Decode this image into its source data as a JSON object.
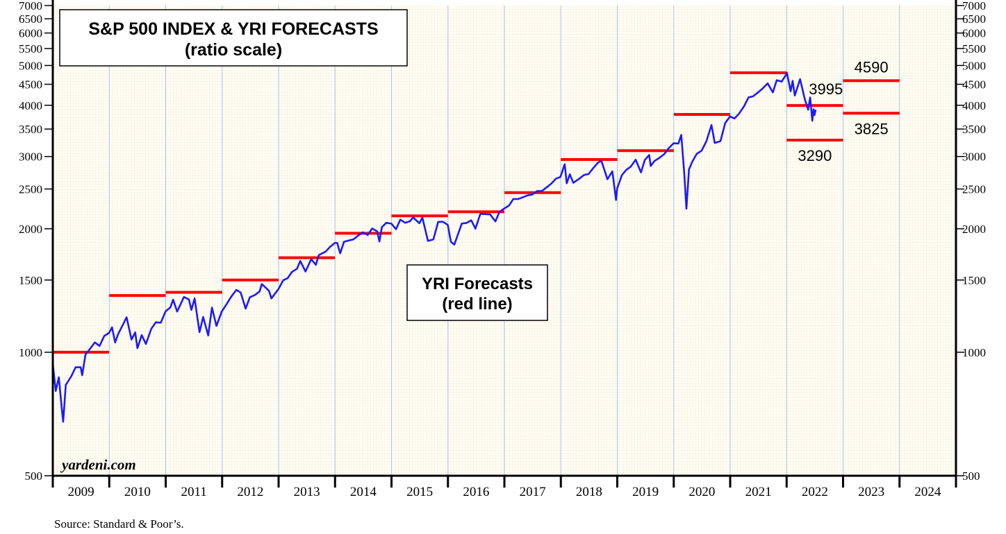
{
  "chart_data": {
    "type": "line",
    "title": "S&P 500 INDEX & YRI FORECASTS",
    "subtitle": "(ratio scale)",
    "annotation": "YRI Forecasts",
    "annotation_sub": "(red line)",
    "watermark": "yardeni.com",
    "source": "Source: Standard & Poor’s.",
    "y_scale": "log",
    "ylim": [
      500,
      7000
    ],
    "y_ticks": [
      500,
      1000,
      1500,
      2000,
      2500,
      3000,
      3500,
      4000,
      4500,
      5000,
      5500,
      6000,
      6500,
      7000
    ],
    "y_axis_both_sides": true,
    "x_categories": [
      "2009",
      "2010",
      "2011",
      "2012",
      "2013",
      "2014",
      "2015",
      "2016",
      "2017",
      "2018",
      "2019",
      "2020",
      "2021",
      "2022",
      "2023",
      "2024"
    ],
    "grid": "vertical lines at year boundaries",
    "colors": {
      "index": "#1a1aff",
      "forecast": "#ff0000",
      "grid": "#9ec5f0",
      "background": "#fffbee"
    },
    "series": [
      {
        "name": "S&P 500 Index",
        "type": "line",
        "points": [
          [
            "2009-01-02",
            931
          ],
          [
            "2009-01-20",
            805
          ],
          [
            "2009-02-09",
            869
          ],
          [
            "2009-02-27",
            735
          ],
          [
            "2009-03-09",
            677
          ],
          [
            "2009-03-26",
            833
          ],
          [
            "2009-04-30",
            873
          ],
          [
            "2009-05-29",
            919
          ],
          [
            "2009-06-30",
            919
          ],
          [
            "2009-07-10",
            879
          ],
          [
            "2009-07-31",
            987
          ],
          [
            "2009-08-31",
            1021
          ],
          [
            "2009-09-30",
            1057
          ],
          [
            "2009-10-30",
            1036
          ],
          [
            "2009-11-30",
            1096
          ],
          [
            "2009-12-31",
            1115
          ],
          [
            "2010-01-19",
            1150
          ],
          [
            "2010-02-08",
            1056
          ],
          [
            "2010-02-26",
            1104
          ],
          [
            "2010-03-31",
            1169
          ],
          [
            "2010-04-23",
            1217
          ],
          [
            "2010-05-25",
            1074
          ],
          [
            "2010-06-18",
            1118
          ],
          [
            "2010-07-02",
            1023
          ],
          [
            "2010-07-30",
            1101
          ],
          [
            "2010-08-26",
            1048
          ],
          [
            "2010-09-30",
            1141
          ],
          [
            "2010-10-29",
            1183
          ],
          [
            "2010-11-30",
            1180
          ],
          [
            "2010-12-31",
            1258
          ],
          [
            "2011-01-31",
            1286
          ],
          [
            "2011-02-18",
            1343
          ],
          [
            "2011-03-16",
            1257
          ],
          [
            "2011-04-29",
            1364
          ],
          [
            "2011-05-31",
            1345
          ],
          [
            "2011-06-16",
            1268
          ],
          [
            "2011-07-07",
            1353
          ],
          [
            "2011-08-08",
            1119
          ],
          [
            "2011-08-31",
            1219
          ],
          [
            "2011-10-03",
            1099
          ],
          [
            "2011-10-27",
            1285
          ],
          [
            "2011-11-25",
            1159
          ],
          [
            "2011-12-30",
            1258
          ],
          [
            "2012-01-31",
            1312
          ],
          [
            "2012-02-29",
            1366
          ],
          [
            "2012-04-02",
            1419
          ],
          [
            "2012-04-30",
            1398
          ],
          [
            "2012-06-01",
            1278
          ],
          [
            "2012-06-29",
            1362
          ],
          [
            "2012-07-31",
            1379
          ],
          [
            "2012-08-31",
            1407
          ],
          [
            "2012-09-14",
            1466
          ],
          [
            "2012-10-31",
            1412
          ],
          [
            "2012-11-15",
            1353
          ],
          [
            "2012-12-31",
            1426
          ],
          [
            "2013-01-31",
            1498
          ],
          [
            "2013-02-28",
            1515
          ],
          [
            "2013-03-28",
            1569
          ],
          [
            "2013-04-30",
            1598
          ],
          [
            "2013-05-21",
            1669
          ],
          [
            "2013-06-24",
            1573
          ],
          [
            "2013-07-31",
            1686
          ],
          [
            "2013-08-30",
            1633
          ],
          [
            "2013-09-18",
            1725
          ],
          [
            "2013-10-31",
            1757
          ],
          [
            "2013-11-29",
            1806
          ],
          [
            "2013-12-31",
            1848
          ],
          [
            "2014-01-15",
            1848
          ],
          [
            "2014-02-03",
            1742
          ],
          [
            "2014-02-28",
            1859
          ],
          [
            "2014-03-31",
            1872
          ],
          [
            "2014-04-30",
            1884
          ],
          [
            "2014-05-30",
            1924
          ],
          [
            "2014-06-30",
            1960
          ],
          [
            "2014-07-31",
            1931
          ],
          [
            "2014-08-29",
            2003
          ],
          [
            "2014-09-30",
            1972
          ],
          [
            "2014-10-15",
            1862
          ],
          [
            "2014-10-31",
            2018
          ],
          [
            "2014-11-28",
            2068
          ],
          [
            "2014-12-31",
            2059
          ],
          [
            "2015-01-30",
            1995
          ],
          [
            "2015-02-27",
            2105
          ],
          [
            "2015-03-31",
            2068
          ],
          [
            "2015-04-30",
            2086
          ],
          [
            "2015-05-21",
            2131
          ],
          [
            "2015-06-30",
            2063
          ],
          [
            "2015-07-20",
            2128
          ],
          [
            "2015-08-25",
            1868
          ],
          [
            "2015-09-29",
            1884
          ],
          [
            "2015-10-30",
            2079
          ],
          [
            "2015-11-30",
            2080
          ],
          [
            "2015-12-31",
            2044
          ],
          [
            "2016-01-20",
            1859
          ],
          [
            "2016-02-11",
            1829
          ],
          [
            "2016-03-31",
            2060
          ],
          [
            "2016-04-29",
            2065
          ],
          [
            "2016-05-31",
            2097
          ],
          [
            "2016-06-27",
            2001
          ],
          [
            "2016-07-29",
            2174
          ],
          [
            "2016-08-31",
            2171
          ],
          [
            "2016-09-30",
            2168
          ],
          [
            "2016-11-04",
            2085
          ],
          [
            "2016-11-30",
            2199
          ],
          [
            "2016-12-30",
            2239
          ],
          [
            "2017-01-31",
            2279
          ],
          [
            "2017-02-28",
            2364
          ],
          [
            "2017-03-31",
            2363
          ],
          [
            "2017-04-28",
            2384
          ],
          [
            "2017-05-31",
            2412
          ],
          [
            "2017-06-30",
            2423
          ],
          [
            "2017-07-31",
            2470
          ],
          [
            "2017-08-31",
            2472
          ],
          [
            "2017-09-29",
            2519
          ],
          [
            "2017-10-31",
            2575
          ],
          [
            "2017-11-30",
            2648
          ],
          [
            "2017-12-29",
            2674
          ],
          [
            "2018-01-26",
            2873
          ],
          [
            "2018-02-08",
            2581
          ],
          [
            "2018-02-28",
            2714
          ],
          [
            "2018-03-23",
            2588
          ],
          [
            "2018-04-30",
            2648
          ],
          [
            "2018-05-31",
            2705
          ],
          [
            "2018-06-29",
            2718
          ],
          [
            "2018-07-31",
            2816
          ],
          [
            "2018-08-31",
            2902
          ],
          [
            "2018-09-20",
            2931
          ],
          [
            "2018-10-29",
            2641
          ],
          [
            "2018-11-30",
            2760
          ],
          [
            "2018-12-24",
            2351
          ],
          [
            "2018-12-31",
            2507
          ],
          [
            "2019-01-31",
            2704
          ],
          [
            "2019-02-28",
            2784
          ],
          [
            "2019-03-29",
            2834
          ],
          [
            "2019-04-30",
            2946
          ],
          [
            "2019-06-03",
            2744
          ],
          [
            "2019-06-28",
            2942
          ],
          [
            "2019-07-26",
            3026
          ],
          [
            "2019-08-05",
            2845
          ],
          [
            "2019-08-30",
            2926
          ],
          [
            "2019-09-30",
            2977
          ],
          [
            "2019-10-31",
            3038
          ],
          [
            "2019-11-29",
            3141
          ],
          [
            "2019-12-31",
            3231
          ],
          [
            "2020-01-31",
            3226
          ],
          [
            "2020-02-19",
            3386
          ],
          [
            "2020-03-09",
            2747
          ],
          [
            "2020-03-23",
            2237
          ],
          [
            "2020-04-09",
            2790
          ],
          [
            "2020-04-30",
            2912
          ],
          [
            "2020-05-29",
            3044
          ],
          [
            "2020-06-30",
            3100
          ],
          [
            "2020-07-31",
            3271
          ],
          [
            "2020-09-02",
            3580
          ],
          [
            "2020-09-23",
            3237
          ],
          [
            "2020-10-30",
            3270
          ],
          [
            "2020-11-30",
            3622
          ],
          [
            "2020-12-31",
            3756
          ],
          [
            "2021-01-29",
            3714
          ],
          [
            "2021-02-26",
            3811
          ],
          [
            "2021-03-31",
            3973
          ],
          [
            "2021-04-30",
            4181
          ],
          [
            "2021-05-28",
            4204
          ],
          [
            "2021-06-30",
            4298
          ],
          [
            "2021-07-30",
            4395
          ],
          [
            "2021-08-31",
            4523
          ],
          [
            "2021-10-04",
            4300
          ],
          [
            "2021-10-29",
            4605
          ],
          [
            "2021-11-30",
            4567
          ],
          [
            "2021-12-31",
            4766
          ],
          [
            "2022-01-03",
            4797
          ],
          [
            "2022-01-27",
            4326
          ],
          [
            "2022-02-09",
            4587
          ],
          [
            "2022-02-23",
            4226
          ],
          [
            "2022-03-29",
            4632
          ],
          [
            "2022-04-29",
            4132
          ],
          [
            "2022-05-20",
            3901
          ],
          [
            "2022-06-02",
            4177
          ],
          [
            "2022-06-16",
            3667
          ],
          [
            "2022-06-24",
            3912
          ],
          [
            "2022-06-30",
            3785
          ],
          [
            "2022-07-08",
            3899
          ]
        ]
      },
      {
        "name": "YRI Forecasts",
        "type": "step",
        "forecasts": [
          {
            "year": "2009",
            "value": 1000
          },
          {
            "year": "2010",
            "value": 1375
          },
          {
            "year": "2011",
            "value": 1400
          },
          {
            "year": "2012",
            "value": 1500
          },
          {
            "year": "2013",
            "value": 1700
          },
          {
            "year": "2014",
            "value": 1950
          },
          {
            "year": "2015",
            "value": 2150
          },
          {
            "year": "2016",
            "value": 2200
          },
          {
            "year": "2017",
            "value": 2450
          },
          {
            "year": "2018",
            "value": 2950
          },
          {
            "year": "2019",
            "value": 3100
          },
          {
            "year": "2020",
            "value": 3800
          },
          {
            "year": "2021",
            "value": 4800
          },
          {
            "year": "2022",
            "value": 3995,
            "label": "3995"
          },
          {
            "year": "2022",
            "value": 3290,
            "label": "3290"
          },
          {
            "year": "2023",
            "value": 4590,
            "label": "4590"
          },
          {
            "year": "2023",
            "value": 3825,
            "label": "3825"
          }
        ]
      }
    ]
  }
}
